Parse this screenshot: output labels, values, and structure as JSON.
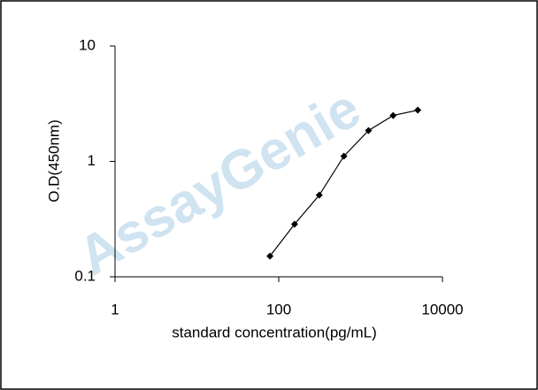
{
  "chart_data": {
    "type": "line",
    "x_label": "standard concentration(pg/mL)",
    "y_label": "O.D(450nm)",
    "watermark": "AssayGenie",
    "x": [
      78.125,
      156.25,
      312.5,
      625,
      1250,
      2500,
      5000
    ],
    "series": [
      {
        "color": "#000000",
        "values": [
          0.151,
          0.286,
          0.51,
          1.11,
          1.85,
          2.5,
          2.78
        ]
      }
    ],
    "xscale": "log",
    "yscale": "log",
    "xlim": [
      1,
      10000
    ],
    "ylim": [
      0.1,
      10
    ],
    "xticks": [
      1,
      100,
      10000
    ],
    "yticks": [
      0.1,
      1,
      10
    ]
  }
}
